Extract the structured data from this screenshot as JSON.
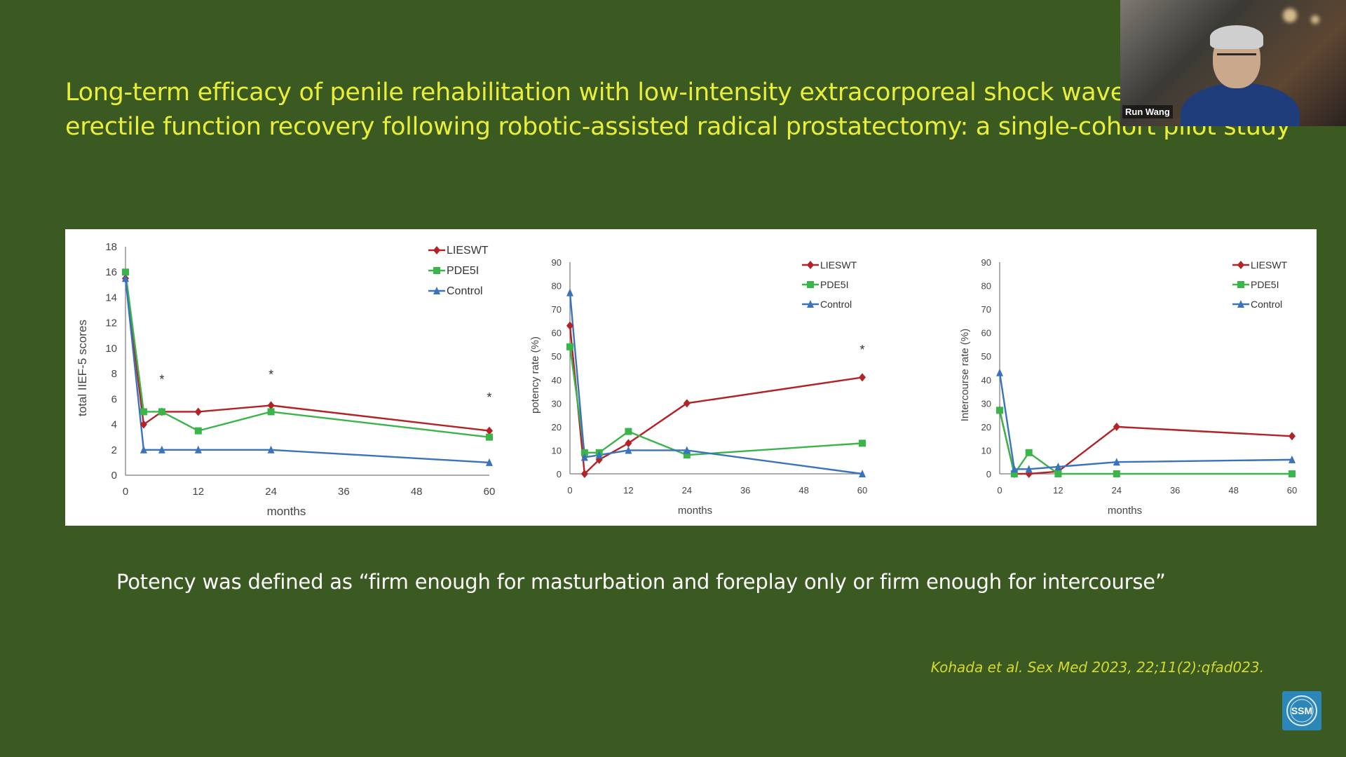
{
  "slide": {
    "title": "Long-term efficacy of penile rehabilitation with low-intensity extracorporeal shock wave therapy and erectile function recovery following robotic-assisted radical prostatectomy: a single-cohort pilot study",
    "caption": "Potency was defined as “firm enough for masturbation and foreplay only or firm enough for intercourse”",
    "citation": "Kohada et al. Sex Med 2023, 22;11(2):qfad023.",
    "participant_name": "Run Wang"
  },
  "colors": {
    "background": "#3a5a22",
    "title": "#e9ee3a",
    "LIESWT": "#b22226",
    "PDE5I": "#3ab54a",
    "Control": "#3a73bd"
  },
  "chart_data": [
    {
      "type": "line",
      "xlabel": "months",
      "ylabel": "total IIEF-5 scores",
      "xticks": [
        0,
        12,
        24,
        36,
        48,
        60
      ],
      "yticks": [
        0,
        2,
        4,
        6,
        8,
        10,
        12,
        14,
        16,
        18
      ],
      "xlim": [
        0,
        60
      ],
      "ylim": [
        0,
        18
      ],
      "legend_position": "top-right",
      "series": [
        {
          "name": "LIESWT",
          "marker": "diamond",
          "x": [
            0,
            3,
            6,
            12,
            24,
            60
          ],
          "y": [
            15.5,
            4,
            5,
            5,
            5.5,
            3.5
          ]
        },
        {
          "name": "PDE5I",
          "marker": "square",
          "x": [
            0,
            3,
            6,
            12,
            24,
            60
          ],
          "y": [
            16,
            5,
            5,
            3.5,
            5,
            3
          ]
        },
        {
          "name": "Control",
          "marker": "triangle",
          "x": [
            0,
            3,
            6,
            12,
            24,
            60
          ],
          "y": [
            15.5,
            2,
            2,
            2,
            2,
            1
          ]
        }
      ],
      "annotations": [
        {
          "text": "*",
          "x": 6,
          "y": 7.2
        },
        {
          "text": "*",
          "x": 24,
          "y": 7.6
        },
        {
          "text": "*",
          "x": 60,
          "y": 5.8
        }
      ]
    },
    {
      "type": "line",
      "xlabel": "months",
      "ylabel": "potency rate (%)",
      "xticks": [
        0,
        12,
        24,
        36,
        48,
        60
      ],
      "yticks": [
        0,
        10,
        20,
        30,
        40,
        50,
        60,
        70,
        80,
        90
      ],
      "xlim": [
        0,
        60
      ],
      "ylim": [
        0,
        90
      ],
      "legend_position": "top-right",
      "series": [
        {
          "name": "LIESWT",
          "marker": "diamond",
          "x": [
            0,
            3,
            6,
            12,
            24,
            60
          ],
          "y": [
            63,
            0,
            6,
            13,
            30,
            41
          ]
        },
        {
          "name": "PDE5I",
          "marker": "square",
          "x": [
            0,
            3,
            6,
            12,
            24,
            60
          ],
          "y": [
            54,
            9,
            9,
            18,
            8,
            13
          ]
        },
        {
          "name": "Control",
          "marker": "triangle",
          "x": [
            0,
            3,
            6,
            12,
            24,
            60
          ],
          "y": [
            77,
            7,
            8,
            10,
            10,
            0
          ]
        }
      ],
      "annotations": [
        {
          "text": "*",
          "x": 60,
          "y": 51
        }
      ]
    },
    {
      "type": "line",
      "xlabel": "months",
      "ylabel": "Intercourse rate (%)",
      "xticks": [
        0,
        12,
        24,
        36,
        48,
        60
      ],
      "yticks": [
        0,
        10,
        20,
        30,
        40,
        50,
        60,
        70,
        80,
        90
      ],
      "xlim": [
        0,
        60
      ],
      "ylim": [
        0,
        90
      ],
      "legend_position": "top-right",
      "series": [
        {
          "name": "LIESWT",
          "marker": "diamond",
          "x": [
            0,
            3,
            6,
            12,
            24,
            60
          ],
          "y": [
            27,
            0,
            0,
            1,
            20,
            16
          ]
        },
        {
          "name": "PDE5I",
          "marker": "square",
          "x": [
            0,
            3,
            6,
            12,
            24,
            60
          ],
          "y": [
            27,
            0,
            9,
            0,
            0,
            0
          ]
        },
        {
          "name": "Control",
          "marker": "triangle",
          "x": [
            0,
            3,
            6,
            12,
            24,
            60
          ],
          "y": [
            43,
            2,
            2,
            3,
            5,
            6
          ]
        }
      ],
      "annotations": []
    }
  ]
}
